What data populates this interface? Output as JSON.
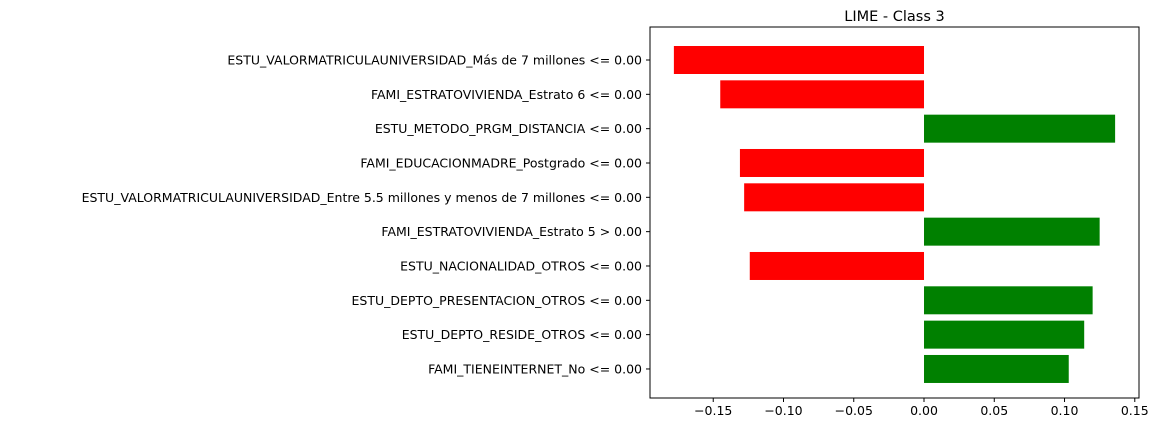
{
  "chart_data": {
    "type": "bar",
    "orientation": "horizontal",
    "title": "LIME - Class 3",
    "xlabel": "",
    "ylabel": "",
    "xlim": [
      -0.195,
      0.153
    ],
    "xticks": [
      -0.15,
      -0.1,
      -0.05,
      0.0,
      0.05,
      0.1,
      0.15
    ],
    "xtick_labels": [
      "−0.15",
      "−0.10",
      "−0.05",
      "0.00",
      "0.05",
      "0.10",
      "0.15"
    ],
    "grid": false,
    "positive_color": "#008000",
    "negative_color": "#ff0000",
    "categories": [
      "ESTU_VALORMATRICULAUNIVERSIDAD_Más de 7 millones <= 0.00",
      "FAMI_ESTRATOVIVIENDA_Estrato 6 <= 0.00",
      "ESTU_METODO_PRGM_DISTANCIA <= 0.00",
      "FAMI_EDUCACIONMADRE_Postgrado <= 0.00",
      "ESTU_VALORMATRICULAUNIVERSIDAD_Entre 5.5 millones y menos de 7 millones <= 0.00",
      "FAMI_ESTRATOVIVIENDA_Estrato 5 > 0.00",
      "ESTU_NACIONALIDAD_OTROS <= 0.00",
      "ESTU_DEPTO_PRESENTACION_OTROS <= 0.00",
      "ESTU_DEPTO_RESIDE_OTROS <= 0.00",
      "FAMI_TIENEINTERNET_No <= 0.00"
    ],
    "values": [
      -0.178,
      -0.145,
      0.136,
      -0.131,
      -0.128,
      0.125,
      -0.124,
      0.12,
      0.114,
      0.103
    ]
  }
}
